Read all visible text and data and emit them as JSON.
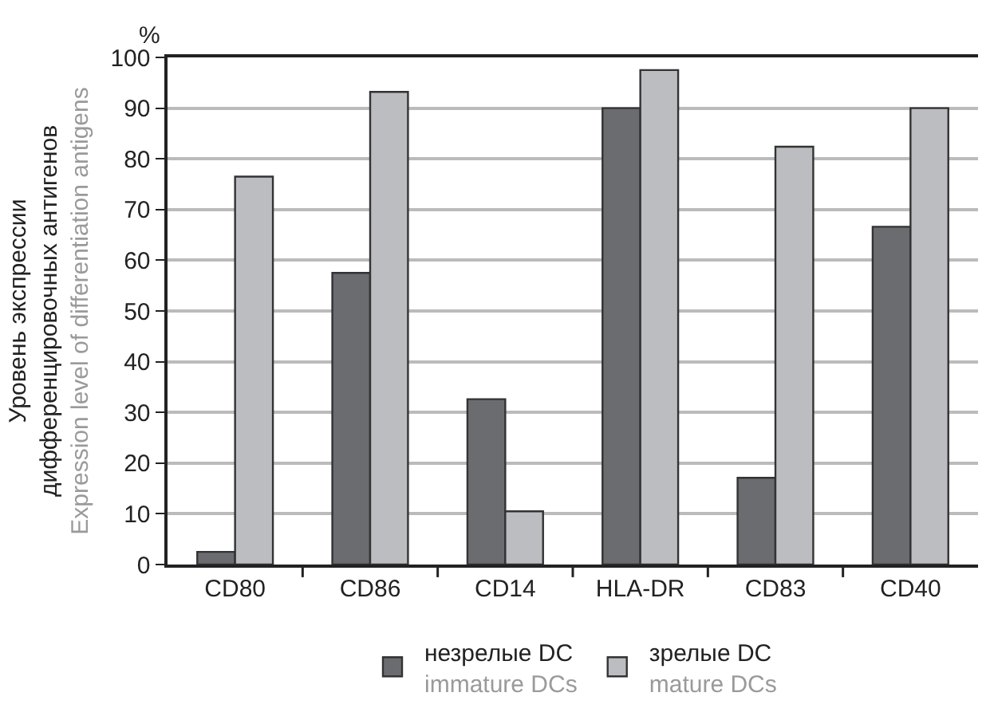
{
  "chart_data": {
    "type": "bar",
    "categories": [
      "CD80",
      "CD86",
      "CD14",
      "HLA-DR",
      "CD83",
      "CD40"
    ],
    "series": [
      {
        "name": "незрелые DC\nimmature DCs",
        "color": "#6b6c70",
        "values": [
          2.5,
          57.5,
          32.6,
          90,
          17.1,
          66.6
        ]
      },
      {
        "name": "зрелые DC\nmature DCs",
        "color": "#bcbdc1",
        "values": [
          76.5,
          93.2,
          10.5,
          97.5,
          82.4,
          90
        ]
      }
    ],
    "ylabel": "Уровень экспрессии\nдифференцировочных антигенов\nExpression level of differentiation antigens",
    "annotations": [
      "%"
    ],
    "ylim": [
      0,
      100
    ],
    "yticks": [
      0,
      10,
      20,
      30,
      40,
      50,
      60,
      70,
      80,
      90,
      100
    ],
    "grid": "y",
    "legend": "bottom"
  }
}
